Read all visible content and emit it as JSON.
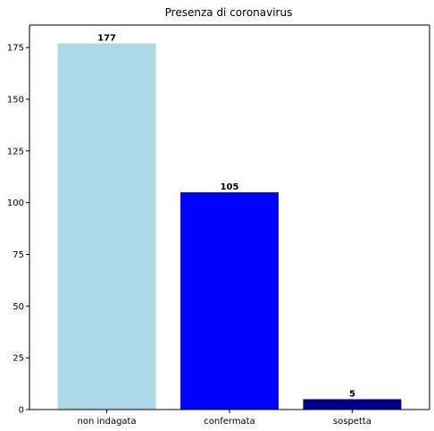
{
  "chart_data": {
    "type": "bar",
    "title": "Presenza di coronavirus",
    "xlabel": "",
    "ylabel": "",
    "categories": [
      "non indagata",
      "confermata",
      "sospetta"
    ],
    "values": [
      177,
      105,
      5
    ],
    "data_labels": [
      "177",
      "105",
      "5"
    ],
    "colors": [
      "#add8e6",
      "#0000ff",
      "#00008b"
    ],
    "ylim": [
      0,
      185.85
    ],
    "yticks": [
      0,
      25,
      50,
      75,
      100,
      125,
      150,
      175
    ],
    "grid": false,
    "legend": "none"
  }
}
